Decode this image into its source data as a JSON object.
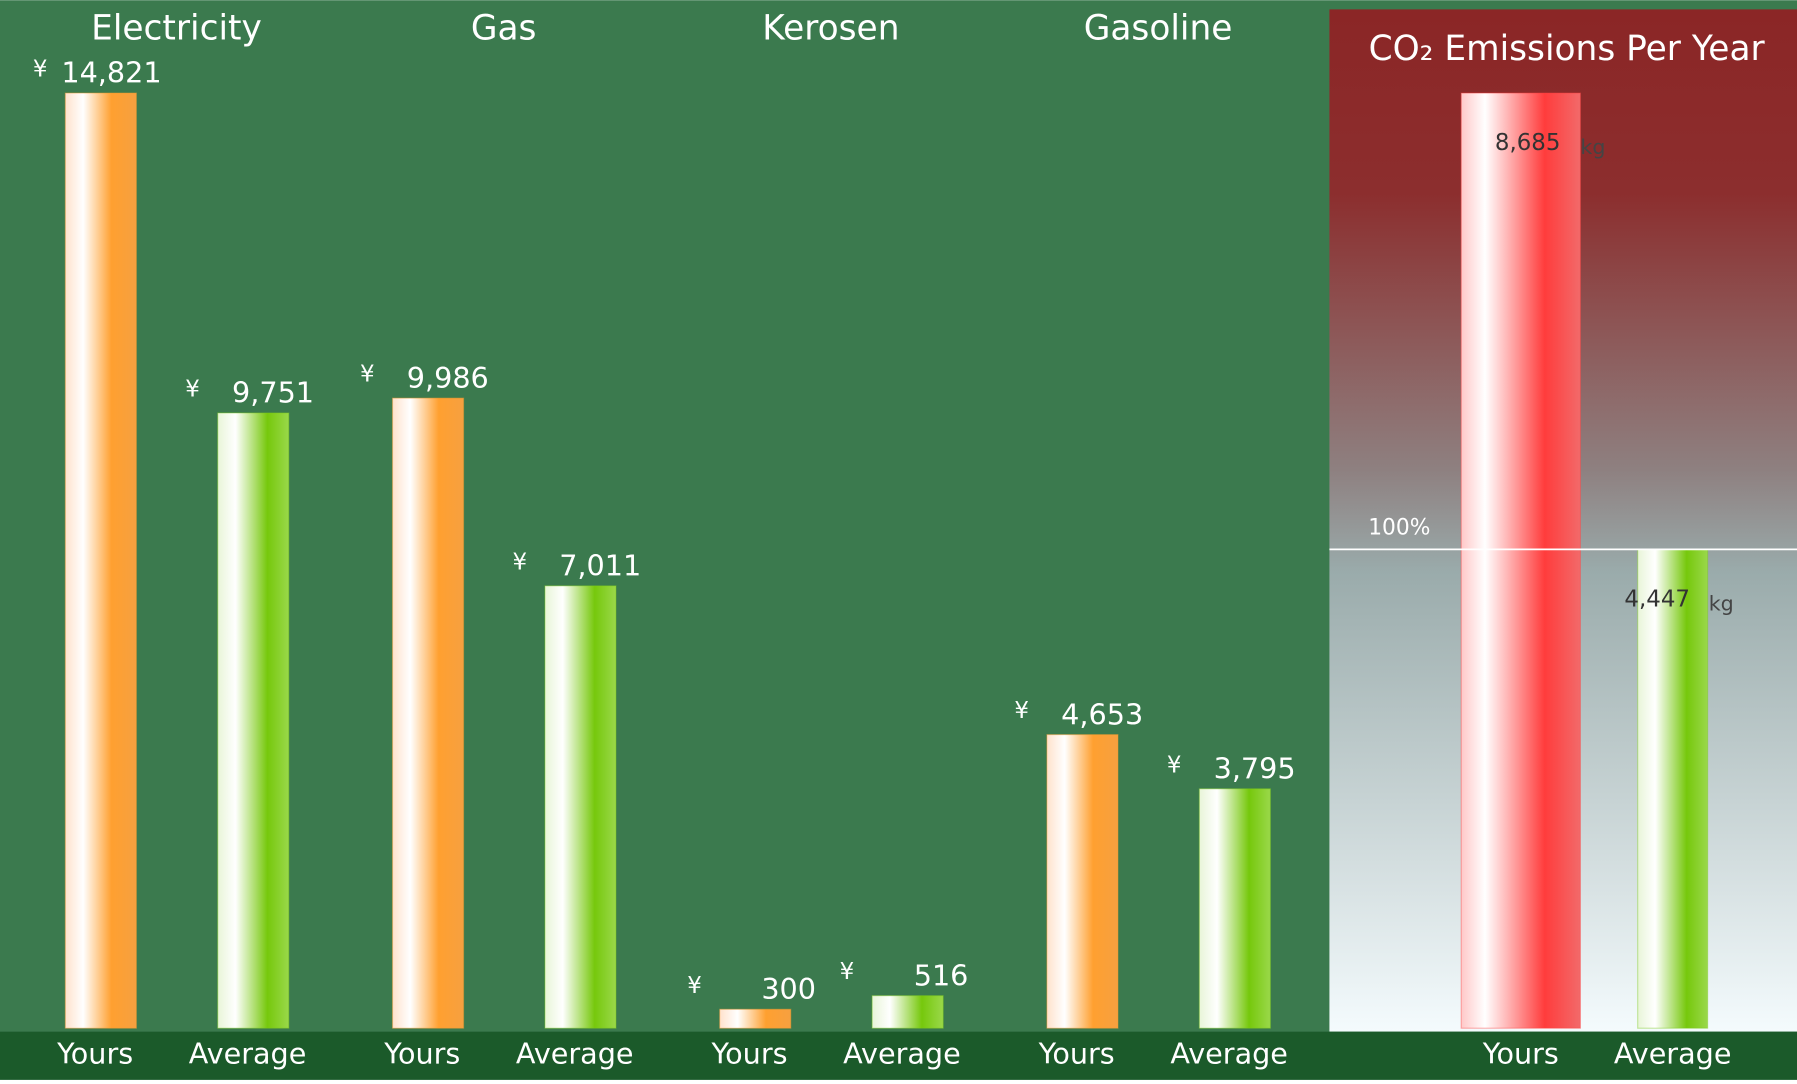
{
  "chart_data": [
    {
      "type": "bar",
      "categories": [
        "Electricity",
        "Gas",
        "Kerosen",
        "Gasoline"
      ],
      "currency_symbol": "¥",
      "series": [
        {
          "name": "Yours",
          "color": "#f99a2a",
          "values": [
            14821,
            9986,
            300,
            4653
          ],
          "value_labels": [
            "14,821",
            "9,986",
            "300",
            "4,653"
          ]
        },
        {
          "name": "Average",
          "color": "#7ac81a",
          "values": [
            9751,
            7011,
            516,
            3795
          ],
          "value_labels": [
            "9,751",
            "7,011",
            "516",
            "3,795"
          ]
        }
      ],
      "ylim": [
        0,
        14821
      ]
    },
    {
      "type": "bar",
      "title": "CO₂ Emissions Per Year",
      "unit": "kg",
      "categories": [
        "Yours",
        "Average"
      ],
      "values": [
        8685,
        4447
      ],
      "value_labels": [
        "8,685",
        "4,447"
      ],
      "colors": [
        "#ff4040",
        "#7ac81a"
      ],
      "reference_line": {
        "value": 4447,
        "label": "100%"
      },
      "ylim": [
        0,
        8685
      ]
    }
  ]
}
